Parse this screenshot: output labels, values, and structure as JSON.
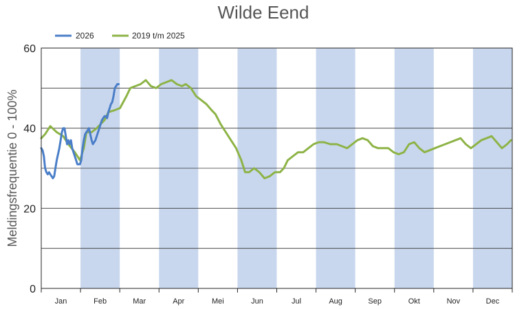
{
  "chart_data": {
    "type": "line",
    "title": "Wilde Eend",
    "ylabel": "Meldingsfrequentie 0 - 100%",
    "xlabel": "",
    "ylim": [
      0,
      60
    ],
    "yticks": [
      0,
      20,
      40,
      60
    ],
    "ygrid": [
      10,
      20,
      30,
      40,
      50
    ],
    "grid": true,
    "legend_position": "top-left",
    "months": [
      "Jan",
      "Feb",
      "Mar",
      "Apr",
      "Mei",
      "Jun",
      "Jul",
      "Aug",
      "Sep",
      "Okt",
      "Nov",
      "Dec"
    ],
    "shaded_months": [
      "Feb",
      "Apr",
      "Jun",
      "Aug",
      "Okt",
      "Dec"
    ],
    "band_color": "#c9d7ee",
    "x_unit": "day of year",
    "series": [
      {
        "name": "2026",
        "color": "#4a7ec8",
        "points": [
          [
            1,
            35
          ],
          [
            2,
            34.5
          ],
          [
            3,
            33
          ],
          [
            4,
            30
          ],
          [
            5,
            29
          ],
          [
            6,
            28.5
          ],
          [
            7,
            29
          ],
          [
            8,
            28.5
          ],
          [
            9,
            28
          ],
          [
            10,
            27.5
          ],
          [
            11,
            28
          ],
          [
            12,
            30
          ],
          [
            13,
            32
          ],
          [
            14,
            33.5
          ],
          [
            15,
            35
          ],
          [
            16,
            37
          ],
          [
            17,
            39
          ],
          [
            18,
            40
          ],
          [
            19,
            40
          ],
          [
            20,
            38
          ],
          [
            21,
            36
          ],
          [
            22,
            37
          ],
          [
            23,
            36
          ],
          [
            24,
            37
          ],
          [
            25,
            35
          ],
          [
            26,
            34
          ],
          [
            27,
            33
          ],
          [
            28,
            32
          ],
          [
            29,
            31
          ],
          [
            30,
            31
          ],
          [
            31,
            31
          ],
          [
            32,
            32
          ],
          [
            33,
            35
          ],
          [
            34,
            37
          ],
          [
            35,
            38.5
          ],
          [
            36,
            39
          ],
          [
            37,
            39.5
          ],
          [
            38,
            40
          ],
          [
            39,
            38.5
          ],
          [
            40,
            37
          ],
          [
            41,
            36
          ],
          [
            42,
            36.5
          ],
          [
            43,
            37
          ],
          [
            44,
            38
          ],
          [
            45,
            39
          ],
          [
            46,
            40
          ],
          [
            47,
            41
          ],
          [
            48,
            42
          ],
          [
            49,
            42.5
          ],
          [
            50,
            43
          ],
          [
            51,
            43
          ],
          [
            52,
            42.5
          ],
          [
            53,
            44
          ],
          [
            54,
            45
          ],
          [
            55,
            46
          ],
          [
            56,
            46.5
          ],
          [
            57,
            48
          ],
          [
            58,
            50
          ],
          [
            59,
            50.5
          ],
          [
            60,
            51
          ],
          [
            61,
            51
          ]
        ]
      },
      {
        "name": "2019 t/m 2025",
        "color": "#8db346",
        "points": [
          [
            1,
            37.5
          ],
          [
            4,
            38.5
          ],
          [
            8,
            40.5
          ],
          [
            13,
            39
          ],
          [
            18,
            38
          ],
          [
            22,
            36
          ],
          [
            27,
            34
          ],
          [
            31,
            32
          ],
          [
            34,
            35
          ],
          [
            36,
            39
          ],
          [
            40,
            39
          ],
          [
            44,
            40
          ],
          [
            47,
            41
          ],
          [
            50,
            42
          ],
          [
            53,
            44
          ],
          [
            58,
            44.5
          ],
          [
            62,
            45
          ],
          [
            67,
            48
          ],
          [
            70,
            50
          ],
          [
            74,
            50.5
          ],
          [
            78,
            51
          ],
          [
            82,
            52
          ],
          [
            86,
            50.5
          ],
          [
            90,
            50
          ],
          [
            94,
            51
          ],
          [
            98,
            51.5
          ],
          [
            102,
            52
          ],
          [
            106,
            51
          ],
          [
            110,
            50.5
          ],
          [
            113,
            51
          ],
          [
            117,
            50
          ],
          [
            121,
            48
          ],
          [
            125,
            47
          ],
          [
            129,
            46
          ],
          [
            133,
            44.5
          ],
          [
            136,
            43.5
          ],
          [
            140,
            41
          ],
          [
            144,
            39
          ],
          [
            148,
            37
          ],
          [
            152,
            35
          ],
          [
            156,
            32
          ],
          [
            159,
            29
          ],
          [
            162,
            29
          ],
          [
            166,
            30
          ],
          [
            170,
            29
          ],
          [
            174,
            27.5
          ],
          [
            178,
            28
          ],
          [
            182,
            29
          ],
          [
            186,
            29
          ],
          [
            189,
            30
          ],
          [
            192,
            32
          ],
          [
            196,
            33
          ],
          [
            200,
            34
          ],
          [
            204,
            34
          ],
          [
            208,
            35
          ],
          [
            212,
            36
          ],
          [
            216,
            36.5
          ],
          [
            220,
            36.5
          ],
          [
            225,
            36
          ],
          [
            230,
            36
          ],
          [
            234,
            35.5
          ],
          [
            238,
            35
          ],
          [
            242,
            36
          ],
          [
            246,
            37
          ],
          [
            250,
            37.5
          ],
          [
            254,
            37
          ],
          [
            258,
            35.5
          ],
          [
            262,
            35
          ],
          [
            266,
            35
          ],
          [
            270,
            35
          ],
          [
            274,
            34
          ],
          [
            278,
            33.5
          ],
          [
            282,
            34
          ],
          [
            286,
            36
          ],
          [
            290,
            36.5
          ],
          [
            294,
            35
          ],
          [
            298,
            34
          ],
          [
            302,
            34.5
          ],
          [
            306,
            35
          ],
          [
            310,
            35.5
          ],
          [
            314,
            36
          ],
          [
            318,
            36.5
          ],
          [
            322,
            37
          ],
          [
            326,
            37.5
          ],
          [
            330,
            36
          ],
          [
            334,
            35
          ],
          [
            338,
            36
          ],
          [
            342,
            37
          ],
          [
            346,
            37.5
          ],
          [
            350,
            38
          ],
          [
            354,
            36.5
          ],
          [
            358,
            35
          ],
          [
            362,
            36
          ],
          [
            365,
            37
          ]
        ]
      }
    ]
  }
}
